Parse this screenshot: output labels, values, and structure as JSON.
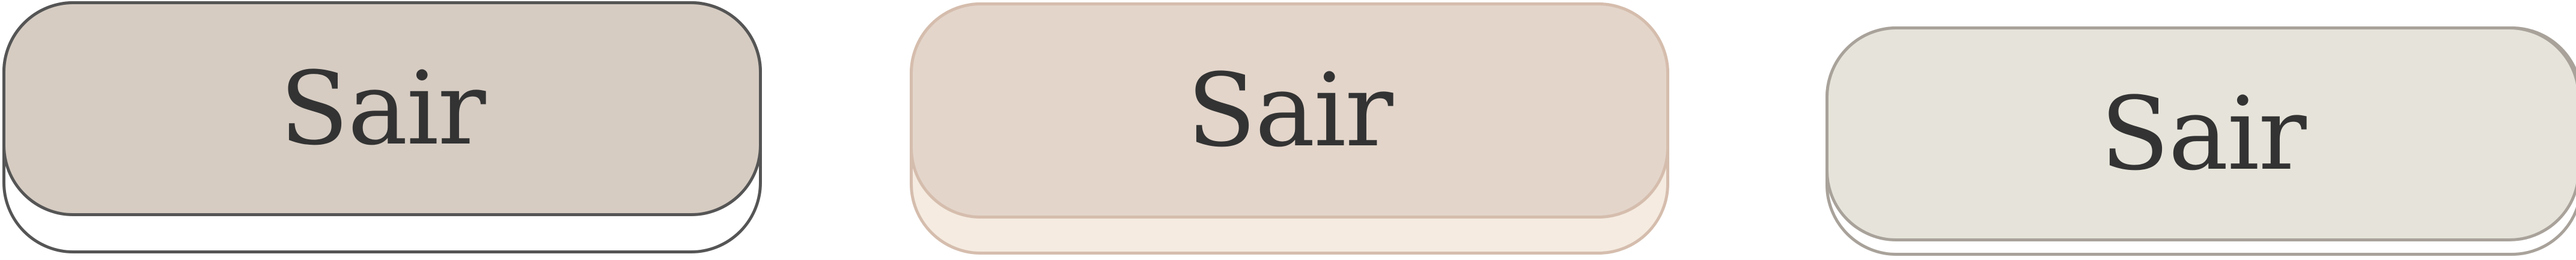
{
  "buttons": [
    {
      "label": "Sair",
      "colors": {
        "face": "#d6ccc2",
        "border": "#555555",
        "base": "#ffffff"
      }
    },
    {
      "label": "Sair",
      "colors": {
        "face": "#e3d5ca",
        "border": "#d5bdad",
        "base": "#f5ebe0"
      }
    },
    {
      "label": "Sair",
      "colors": {
        "face": "#e6e4da",
        "border": "#a8a29a",
        "base": "#ffffff"
      }
    }
  ]
}
